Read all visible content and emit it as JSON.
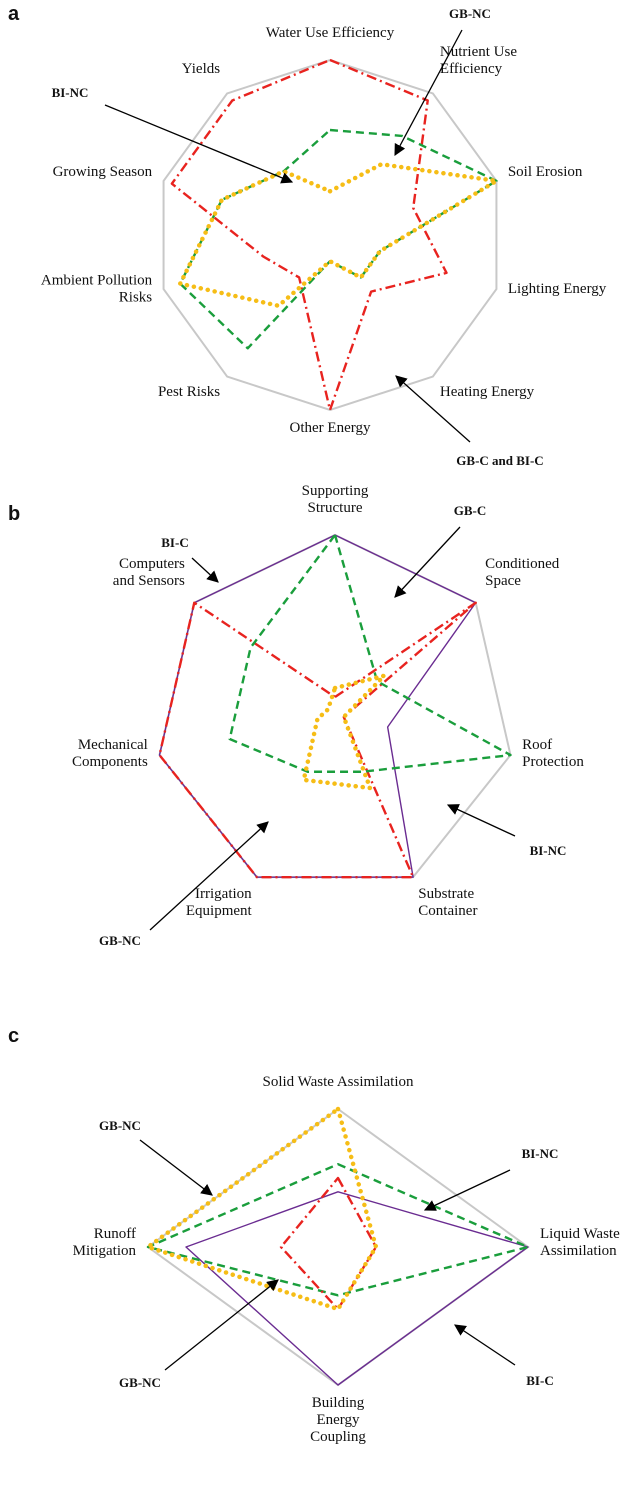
{
  "chart_data": [
    {
      "type": "radar",
      "panel": "a",
      "rlim": [
        0,
        1
      ],
      "axes": [
        [
          "Water Use Efficiency"
        ],
        [
          "Nutrient Use",
          "Efficiency"
        ],
        [
          "Soil Erosion"
        ],
        [
          "Lighting Energy"
        ],
        [
          "Heating Energy"
        ],
        [
          "Other Energy"
        ],
        [
          "Pest Risks"
        ],
        [
          "Ambient Pollution",
          "Risks"
        ],
        [
          "Growing Season"
        ],
        [
          "Yields"
        ]
      ],
      "series": [
        {
          "color": "#e8231f",
          "dash": "dash-dot",
          "values": [
            1.0,
            0.95,
            0.5,
            0.7,
            0.4,
            1.0,
            0.3,
            0.4,
            0.95,
            0.95
          ]
        },
        {
          "color": "#1a9e3c",
          "dash": "dashed",
          "values": [
            0.6,
            0.7,
            1.0,
            0.3,
            0.3,
            0.15,
            0.8,
            0.9,
            0.65,
            0.45
          ]
        },
        {
          "color": "#f6bd16",
          "dash": "dotted",
          "values": [
            0.25,
            0.5,
            1.0,
            0.3,
            0.3,
            0.15,
            0.5,
            0.9,
            0.65,
            0.45
          ]
        }
      ],
      "annotations": [
        "BI-NC",
        "GB-NC",
        "GB-C and BI-C"
      ]
    },
    {
      "type": "radar",
      "panel": "b",
      "rlim": [
        0,
        1
      ],
      "axes": [
        [
          "Supporting",
          "Structure"
        ],
        [
          "Conditioned",
          "Space"
        ],
        [
          "Roof",
          "Protection"
        ],
        [
          "Substrate",
          "Container"
        ],
        [
          "Irrigation",
          "Equipment"
        ],
        [
          "Mechanical",
          "Components"
        ],
        [
          "Computers",
          "and Sensors"
        ]
      ],
      "series": [
        {
          "color": "#6a2c91",
          "dash": "solid",
          "values": [
            1.0,
            1.0,
            0.3,
            1.0,
            1.0,
            1.0,
            1.0
          ]
        },
        {
          "color": "#e8231f",
          "dash": "dash-dot",
          "values": [
            0.1,
            1.0,
            0.05,
            1.0,
            1.0,
            1.0,
            1.0
          ]
        },
        {
          "color": "#1a9e3c",
          "dash": "dashed",
          "values": [
            1.0,
            0.3,
            1.0,
            0.35,
            0.35,
            0.6,
            0.6
          ]
        },
        {
          "color": "#f6bd16",
          "dash": "dotted",
          "values": [
            0.15,
            0.35,
            0.05,
            0.45,
            0.4,
            0.1,
            0.05
          ]
        }
      ],
      "annotations": [
        "BI-C",
        "GB-C",
        "BI-NC",
        "GB-NC"
      ]
    },
    {
      "type": "radar",
      "panel": "c",
      "rlim": [
        0,
        1
      ],
      "axes": [
        [
          "Solid Waste Assimilation"
        ],
        [
          "Liquid Waste",
          "Assimilation"
        ],
        [
          "Building",
          "Energy",
          "Coupling"
        ],
        [
          "Runoff",
          "Mitigation"
        ]
      ],
      "series": [
        {
          "color": "#6a2c91",
          "dash": "solid",
          "values": [
            0.4,
            1.0,
            1.0,
            0.8
          ]
        },
        {
          "color": "#1a9e3c",
          "dash": "dashed",
          "values": [
            0.6,
            1.0,
            0.35,
            1.0
          ]
        },
        {
          "color": "#e8231f",
          "dash": "dash-dot",
          "values": [
            0.5,
            0.2,
            0.45,
            0.3
          ]
        },
        {
          "color": "#f6bd16",
          "dash": "dotted",
          "values": [
            1.0,
            0.2,
            0.45,
            1.0
          ]
        }
      ],
      "annotations": [
        "GB-NC",
        "BI-NC",
        "BI-C",
        "GB-NC"
      ]
    }
  ]
}
